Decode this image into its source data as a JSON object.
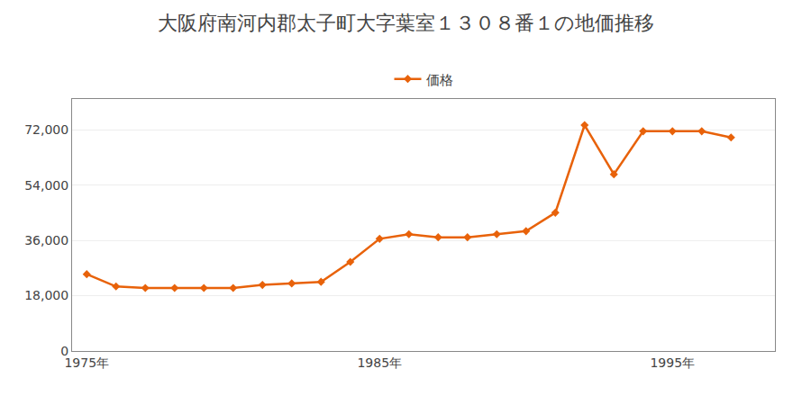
{
  "chart_data": {
    "type": "line",
    "title": "大阪府南河内郡太子町大字葉室１３０８番１の地価推移",
    "x": [
      1975,
      1976,
      1977,
      1978,
      1979,
      1980,
      1981,
      1982,
      1983,
      1984,
      1985,
      1986,
      1987,
      1988,
      1989,
      1990,
      1991,
      1992,
      1993,
      1994,
      1995,
      1996,
      1997
    ],
    "series": [
      {
        "name": "価格",
        "color": "#E8620A",
        "marker": "diamond",
        "values": [
          25000,
          21000,
          20500,
          20500,
          20500,
          20500,
          21500,
          22000,
          22500,
          29000,
          36500,
          38000,
          37000,
          37000,
          38000,
          39000,
          45000,
          73500,
          57500,
          71500,
          71500,
          71500,
          69500
        ]
      }
    ],
    "xlim": [
      1974.5,
      1998.5
    ],
    "xticks": [
      {
        "value": 1975,
        "label": "1975年"
      },
      {
        "value": 1985,
        "label": "1985年"
      },
      {
        "value": 1995,
        "label": "1995年"
      }
    ],
    "ylim": [
      0,
      82000
    ],
    "yticks": [
      0,
      {
        "value": 18000,
        "label": "18,000"
      },
      {
        "value": 36000,
        "label": "36,000"
      },
      {
        "value": 54000,
        "label": "54,000"
      },
      {
        "value": 72000,
        "label": "72,000"
      }
    ],
    "grid": true,
    "legend": "upper center"
  }
}
